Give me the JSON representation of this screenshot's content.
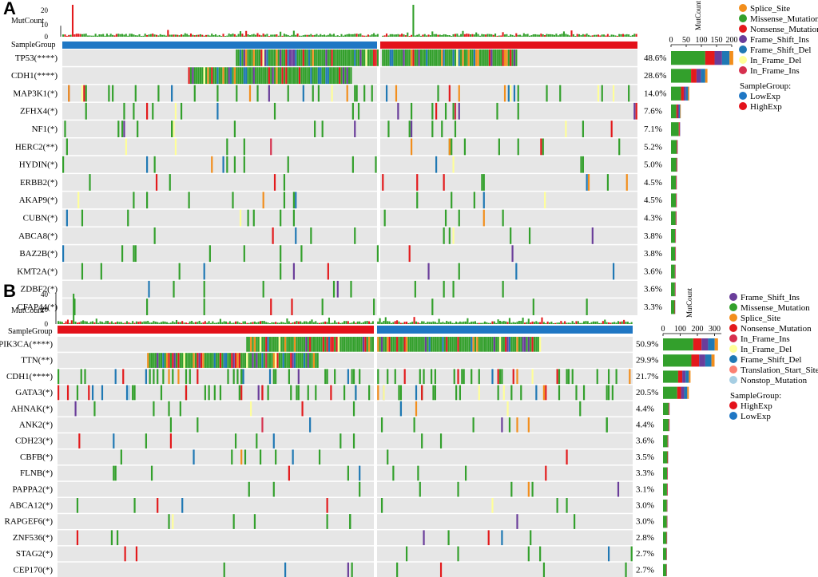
{
  "panels": [
    {
      "label": "A",
      "mutcount_label": "MutCount",
      "mutcount_ticks": [
        "20",
        "10",
        "0"
      ],
      "samplegroup_label": "SampleGroup",
      "groups": [
        {
          "name": "LowExp",
          "color": "#1f77c4"
        },
        {
          "name": "HighExp",
          "color": "#e3121b"
        }
      ],
      "bar_axis_label": "MutCount",
      "bar_axis_ticks": [
        "0",
        "50",
        "100",
        "150",
        "200"
      ],
      "legend_types": [
        "Splice_Site",
        "Missense_Mutation",
        "Nonsense_Mutation",
        "Frame_Shift_Ins",
        "Frame_Shift_Del",
        "In_Frame_Del",
        "In_Frame_Ins"
      ],
      "legend_group_title": "SampleGroup:",
      "legend_groups": [
        "LowExp",
        "HighExp"
      ]
    },
    {
      "label": "B",
      "mutcount_label": "MutCount",
      "mutcount_ticks": [
        "40",
        "20",
        "0"
      ],
      "samplegroup_label": "SampleGroup",
      "groups": [
        {
          "name": "HighExp",
          "color": "#e3121b"
        },
        {
          "name": "LowExp",
          "color": "#1f77c4"
        }
      ],
      "bar_axis_label": "MutCount",
      "bar_axis_ticks": [
        "0",
        "100",
        "200",
        "300"
      ],
      "legend_types": [
        "Frame_Shift_Ins",
        "Missense_Mutation",
        "Splice_Site",
        "Nonsense_Mutation",
        "In_Frame_Ins",
        "In_Frame_Del",
        "Frame_Shift_Del",
        "Translation_Start_Site",
        "Nonstop_Mutation"
      ],
      "legend_group_title": "SampleGroup:",
      "legend_groups": [
        "HighExp",
        "LowExp"
      ]
    }
  ],
  "colors": {
    "Splice_Site": "#f28e1c",
    "Missense_Mutation": "#33a02c",
    "Nonsense_Mutation": "#e31a1c",
    "Frame_Shift_Ins": "#6a3d9a",
    "Frame_Shift_Del": "#1f78b4",
    "In_Frame_Del": "#ffff99",
    "In_Frame_Ins": "#d6304e",
    "Translation_Start_Site": "#fb8072",
    "Nonstop_Mutation": "#a6cee3",
    "LowExp": "#1f77c4",
    "HighExp": "#e3121b",
    "background": "#e6e6e6"
  },
  "chart_data": [
    {
      "type": "heatmap",
      "title": "",
      "genes": [
        "TP53(****)",
        "CDH1(****)",
        "MAP3K1(*)",
        "ZFHX4(*)",
        "NF1(*)",
        "HERC2(**)",
        "HYDIN(*)",
        "ERBB2(*)",
        "AKAP9(*)",
        "CUBN(*)",
        "ABCA8(*)",
        "BAZ2B(*)",
        "KMT2A(*)",
        "ZDBF2(*)",
        "CFAP44(*)"
      ],
      "percentages": [
        "48.6%",
        "28.6%",
        "14.0%",
        "7.6%",
        "7.1%",
        "5.2%",
        "5.0%",
        "4.5%",
        "4.5%",
        "4.3%",
        "3.8%",
        "3.8%",
        "3.6%",
        "3.6%",
        "3.3%"
      ],
      "mutcount_totals": [
        205,
        120,
        60,
        32,
        30,
        22,
        21,
        19,
        19,
        18,
        16,
        16,
        15,
        15,
        14
      ],
      "xlim": [
        0,
        200
      ]
    },
    {
      "type": "heatmap",
      "title": "",
      "genes": [
        "PIK3CA(****)",
        "TTN(**)",
        "CDH1(****)",
        "GATA3(*)",
        "AHNAK(*)",
        "ANK2(*)",
        "CDH23(*)",
        "CBFB(*)",
        "FLNB(*)",
        "PAPPA2(*)",
        "ABCA12(*)",
        "RAPGEF6(*)",
        "ZNF536(*)",
        "STAG2(*)",
        "CEP170(*)"
      ],
      "percentages": [
        "50.9%",
        "29.9%",
        "21.7%",
        "20.5%",
        "4.4%",
        "4.4%",
        "3.6%",
        "3.5%",
        "3.3%",
        "3.1%",
        "3.0%",
        "3.0%",
        "2.8%",
        "2.7%",
        "2.7%"
      ],
      "mutcount_totals": [
        320,
        300,
        160,
        150,
        38,
        38,
        31,
        30,
        28,
        27,
        26,
        26,
        24,
        23,
        23
      ],
      "xlim": [
        0,
        340
      ]
    }
  ]
}
